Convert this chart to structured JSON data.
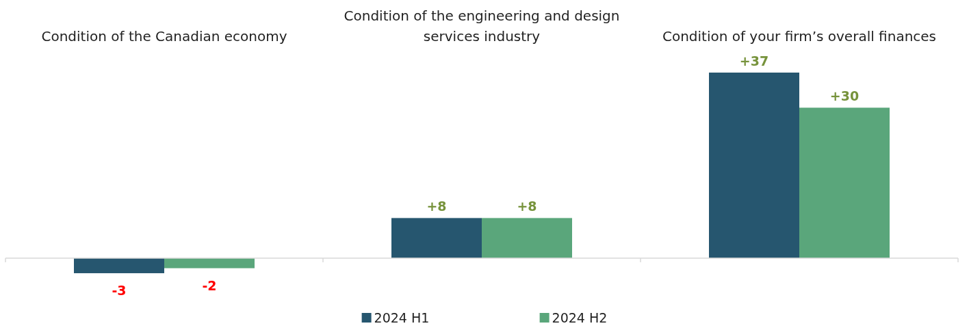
{
  "chart_data": {
    "type": "bar",
    "categories": [
      "Condition of the Canadian economy",
      "Condition of the engineering and design services industry",
      "Condition of your firm’s overall finances"
    ],
    "series": [
      {
        "name": "2024 H1",
        "color": "#26566f",
        "values": [
          -3,
          8,
          37
        ],
        "value_labels": [
          "-3",
          "+8",
          "+37"
        ]
      },
      {
        "name": "2024 H2",
        "color": "#5aa67b",
        "values": [
          -2,
          8,
          30
        ],
        "value_labels": [
          "-2",
          "+8",
          "+30"
        ]
      }
    ],
    "legend": "bottom",
    "tick_labels": "x"
  }
}
